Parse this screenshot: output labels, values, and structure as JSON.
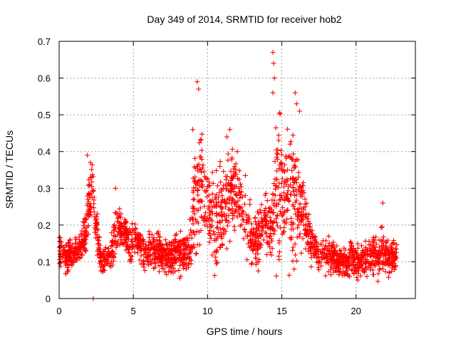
{
  "chart_data": {
    "type": "scatter",
    "title": "Day 349 of 2014, SRMTID for receiver hob2",
    "xlabel": "GPS time / hours",
    "ylabel": "SRMTID / TECUs",
    "xlim": [
      0,
      24
    ],
    "ylim": [
      0,
      0.7
    ],
    "xticks": [
      0,
      5,
      10,
      15,
      20
    ],
    "yticks": [
      0,
      0.1,
      0.2,
      0.3,
      0.4,
      0.5,
      0.6,
      0.7
    ],
    "xtick_labels": [
      "0",
      "5",
      "10",
      "15",
      "20"
    ],
    "ytick_labels": [
      "0",
      "0.1",
      "0.2",
      "0.3",
      "0.4",
      "0.5",
      "0.6",
      "0.7"
    ],
    "grid": true,
    "marker": "plus",
    "color": "#ff0000",
    "series": [
      {
        "name": "SRMTID",
        "x_start": 0.0,
        "x_end": 22.75,
        "x_step": 0.25,
        "approx_center": [
          0.13,
          0.12,
          0.11,
          0.12,
          0.12,
          0.13,
          0.15,
          0.18,
          0.25,
          0.3,
          0.2,
          0.12,
          0.1,
          0.11,
          0.12,
          0.18,
          0.19,
          0.18,
          0.18,
          0.15,
          0.16,
          0.16,
          0.14,
          0.12,
          0.13,
          0.13,
          0.13,
          0.13,
          0.12,
          0.11,
          0.12,
          0.13,
          0.13,
          0.12,
          0.13,
          0.12,
          0.22,
          0.28,
          0.33,
          0.32,
          0.25,
          0.22,
          0.2,
          0.22,
          0.24,
          0.26,
          0.28,
          0.3,
          0.28,
          0.25,
          0.22,
          0.2,
          0.15,
          0.16,
          0.18,
          0.2,
          0.21,
          0.2,
          0.22,
          0.28,
          0.32,
          0.3,
          0.28,
          0.27,
          0.25,
          0.24,
          0.23,
          0.19,
          0.14,
          0.13,
          0.12,
          0.12,
          0.12,
          0.11,
          0.11,
          0.1,
          0.11,
          0.1,
          0.1,
          0.11,
          0.11,
          0.1,
          0.11,
          0.12,
          0.11,
          0.13,
          0.12,
          0.13,
          0.11,
          0.11,
          0.12,
          0.12
        ],
        "approx_spread": [
          0.06,
          0.05,
          0.05,
          0.05,
          0.05,
          0.05,
          0.06,
          0.08,
          0.12,
          0.09,
          0.07,
          0.05,
          0.05,
          0.05,
          0.05,
          0.09,
          0.07,
          0.06,
          0.06,
          0.07,
          0.06,
          0.06,
          0.06,
          0.06,
          0.06,
          0.06,
          0.06,
          0.06,
          0.06,
          0.06,
          0.06,
          0.06,
          0.06,
          0.07,
          0.07,
          0.07,
          0.14,
          0.24,
          0.22,
          0.16,
          0.13,
          0.12,
          0.14,
          0.16,
          0.17,
          0.18,
          0.16,
          0.14,
          0.13,
          0.13,
          0.12,
          0.12,
          0.08,
          0.1,
          0.1,
          0.1,
          0.1,
          0.1,
          0.16,
          0.28,
          0.26,
          0.22,
          0.24,
          0.24,
          0.2,
          0.12,
          0.1,
          0.08,
          0.07,
          0.06,
          0.06,
          0.06,
          0.06,
          0.06,
          0.06,
          0.05,
          0.06,
          0.05,
          0.05,
          0.07,
          0.07,
          0.06,
          0.07,
          0.07,
          0.06,
          0.1,
          0.09,
          0.08,
          0.06,
          0.06,
          0.05,
          0.05
        ],
        "notable_points": [
          {
            "x": 1.9,
            "y": 0.39
          },
          {
            "x": 2.1,
            "y": 0.37
          },
          {
            "x": 3.8,
            "y": 0.3
          },
          {
            "x": 9.3,
            "y": 0.59
          },
          {
            "x": 9.4,
            "y": 0.57
          },
          {
            "x": 9.0,
            "y": 0.46
          },
          {
            "x": 11.5,
            "y": 0.46
          },
          {
            "x": 11.3,
            "y": 0.44
          },
          {
            "x": 12.0,
            "y": 0.4
          },
          {
            "x": 14.4,
            "y": 0.67
          },
          {
            "x": 14.45,
            "y": 0.64
          },
          {
            "x": 14.5,
            "y": 0.6
          },
          {
            "x": 14.4,
            "y": 0.56
          },
          {
            "x": 15.9,
            "y": 0.56
          },
          {
            "x": 16.2,
            "y": 0.51
          },
          {
            "x": 16.0,
            "y": 0.53
          },
          {
            "x": 21.8,
            "y": 0.26
          },
          {
            "x": 2.3,
            "y": 0.0
          }
        ]
      }
    ]
  }
}
